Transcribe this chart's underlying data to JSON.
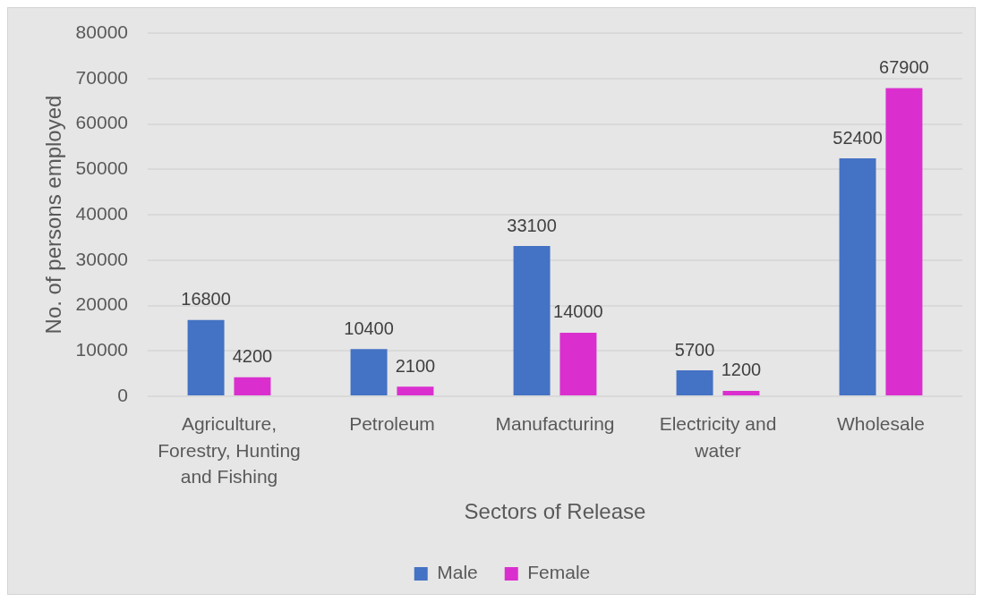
{
  "chart_data": {
    "type": "bar",
    "xlabel": "Sectors of Release",
    "ylabel": "No. of persons employed",
    "categories": [
      "Agriculture, Forestry, Hunting and Fishing",
      "Petroleum",
      "Manufacturing",
      "Electricity and water",
      "Wholesale"
    ],
    "series": [
      {
        "name": "Male",
        "color": "#4472c4",
        "values": [
          16800,
          10400,
          33100,
          5700,
          52400
        ]
      },
      {
        "name": "Female",
        "color": "#da2fce",
        "values": [
          4200,
          2100,
          14000,
          1200,
          67900
        ]
      }
    ],
    "ylim": [
      0,
      80000
    ],
    "yticks": [
      0,
      10000,
      20000,
      30000,
      40000,
      50000,
      60000,
      70000,
      80000
    ],
    "grid": "y",
    "legend": "bottom",
    "data_labels": true
  }
}
